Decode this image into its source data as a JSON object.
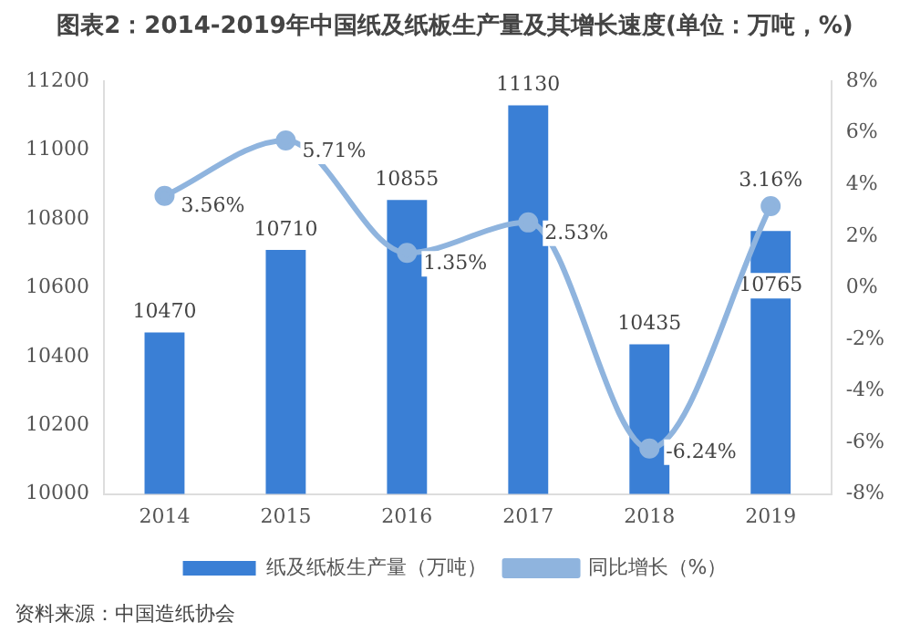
{
  "chart_data": {
    "type": "bar",
    "title": "图表2：2014-2019年中国纸及纸板生产量及其增长速度(单位：万吨，%)",
    "categories": [
      "2014",
      "2015",
      "2016",
      "2017",
      "2018",
      "2019"
    ],
    "series": [
      {
        "name": "纸及纸板生产量（万吨）",
        "color": "#3a7fd5",
        "values": [
          10470,
          10710,
          10855,
          11130,
          10435,
          10765
        ],
        "value_labels": [
          "10470",
          "10710",
          "10855",
          "11130",
          "10435",
          "10765"
        ]
      },
      {
        "name": "同比增长（%）",
        "type": "line",
        "axis": "y2",
        "color": "#8fb4de",
        "marker": "circle",
        "values": [
          3.56,
          5.71,
          1.35,
          2.53,
          -6.24,
          3.16
        ],
        "value_labels": [
          "3.56%",
          "5.71%",
          "1.35%",
          "2.53%",
          "-6.24%",
          "3.16%"
        ]
      }
    ],
    "ylim": [
      10000,
      11200
    ],
    "yticks": [
      10000,
      10200,
      10400,
      10600,
      10800,
      11000,
      11200
    ],
    "y2lim": [
      -8,
      8
    ],
    "y2ticks": [
      {
        "value": -8,
        "label": "-8%"
      },
      {
        "value": -6,
        "label": "-6%"
      },
      {
        "value": -4,
        "label": "-4%"
      },
      {
        "value": -2,
        "label": "-2%"
      },
      {
        "value": 0,
        "label": "0%"
      },
      {
        "value": 2,
        "label": "2%"
      },
      {
        "value": 4,
        "label": "4%"
      },
      {
        "value": 6,
        "label": "6%"
      },
      {
        "value": 8,
        "label": "8%"
      }
    ],
    "grid": false,
    "legend": "bottom",
    "annotations": [
      "资料来源：中国造纸协会"
    ]
  }
}
